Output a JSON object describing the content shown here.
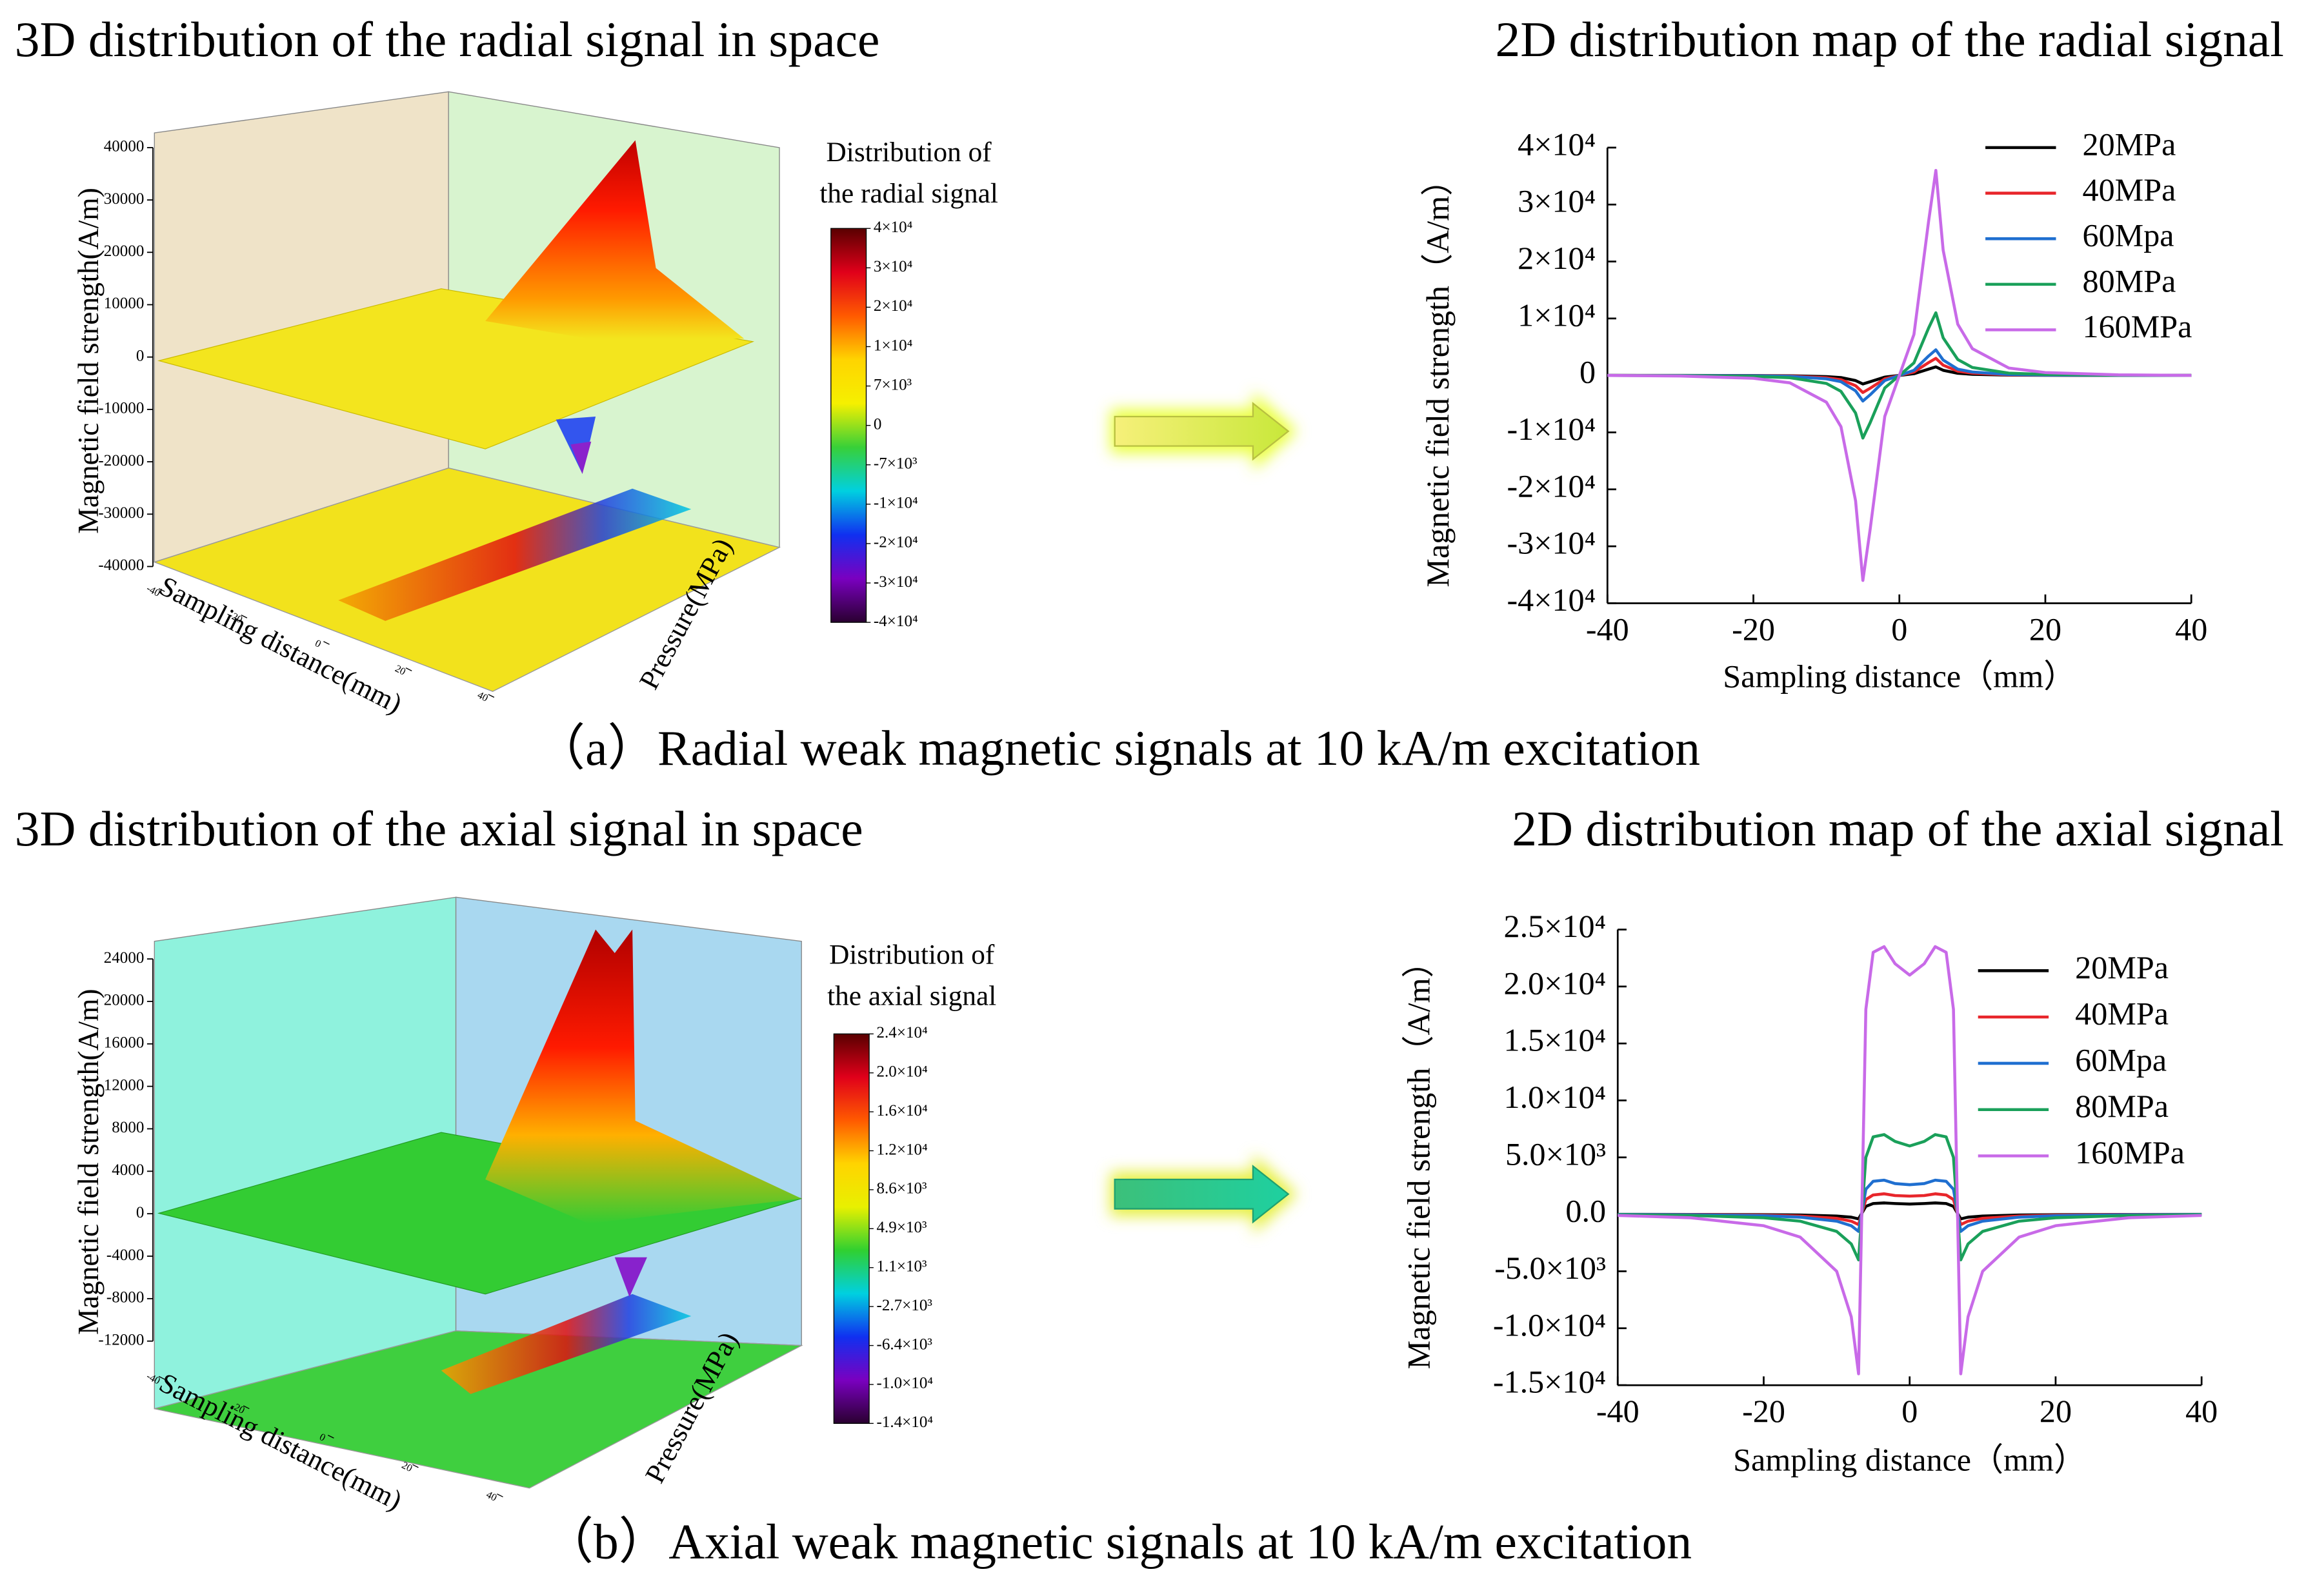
{
  "chart_data": [
    {
      "type": "surface3d",
      "title": "3D distribution of the radial signal in space",
      "zlabel": "Magnetic field strength(A/m)",
      "xlabel": "Sampling distance(mm)",
      "ylabel": "Pressure(MPa)",
      "zlim": [
        -40000,
        40000
      ],
      "zticks": [
        40000,
        30000,
        20000,
        10000,
        0,
        -10000,
        -20000,
        -30000,
        -40000
      ],
      "xlim": [
        -40,
        40
      ],
      "xticks": [
        -40,
        -20,
        0,
        20,
        40
      ],
      "colorbar": {
        "title": [
          "Distribution of",
          "the radial signal"
        ],
        "colors": [
          "#5a0000",
          "#e0001a",
          "#ff5a00",
          "#ffd400",
          "#f5f000",
          "#38d038",
          "#00d0e0",
          "#1030f0",
          "#7a00c0",
          "#2a0030"
        ],
        "ticks": [
          {
            "value": 40000,
            "label": "4×10⁴"
          },
          {
            "value": 30000,
            "label": "3×10⁴"
          },
          {
            "value": 20000,
            "label": "2×10⁴"
          },
          {
            "value": 10000,
            "label": "1×10⁴"
          },
          {
            "value": 7000,
            "label": "7×10³"
          },
          0,
          {
            "value": -7000,
            "label": "-7×10³"
          },
          {
            "value": -10000,
            "label": "-1×10⁴"
          },
          {
            "value": -20000,
            "label": "-2×10⁴"
          },
          {
            "value": -30000,
            "label": "-3×10⁴"
          },
          {
            "value": -40000,
            "label": "-4×10⁴"
          }
        ]
      }
    },
    {
      "type": "line",
      "title": "2D distribution map of the radial signal",
      "xlabel": "Sampling distance（mm）",
      "ylabel": "Magnetic field strength（A/m）",
      "xlim": [
        -40,
        40
      ],
      "xticks": [
        -40,
        -20,
        0,
        20,
        40
      ],
      "ylim": [
        -40000,
        40000
      ],
      "yticks": [
        {
          "value": 40000,
          "label": "4×10⁴"
        },
        {
          "value": 30000,
          "label": "3×10⁴"
        },
        {
          "value": 20000,
          "label": "2×10⁴"
        },
        {
          "value": 10000,
          "label": "1×10⁴"
        },
        0,
        {
          "value": -10000,
          "label": "-1×10⁴"
        },
        {
          "value": -20000,
          "label": "-2×10⁴"
        },
        {
          "value": -30000,
          "label": "-3×10⁴"
        },
        {
          "value": -40000,
          "label": "-4×10⁴"
        }
      ],
      "x": [
        -40,
        -30,
        -20,
        -15,
        -10,
        -8,
        -6,
        -5,
        -4,
        -2,
        0,
        2,
        4,
        5,
        6,
        8,
        10,
        15,
        20,
        30,
        40
      ],
      "series": [
        {
          "name": "20MPa",
          "color": "#000000",
          "values": [
            0,
            0,
            -20,
            -50,
            -200,
            -380,
            -900,
            -1500,
            -1100,
            -300,
            0,
            300,
            1100,
            1500,
            900,
            380,
            200,
            50,
            20,
            0,
            0
          ]
        },
        {
          "name": "40MPa",
          "color": "#e8262b",
          "values": [
            0,
            -10,
            -50,
            -100,
            -400,
            -750,
            -1800,
            -3000,
            -2250,
            -600,
            0,
            600,
            2250,
            3000,
            1800,
            750,
            400,
            100,
            50,
            10,
            0
          ]
        },
        {
          "name": "60Mpa",
          "color": "#1f6fd0",
          "values": [
            0,
            -10,
            -70,
            -160,
            -600,
            -1100,
            -2700,
            -4500,
            -3400,
            -900,
            0,
            900,
            3400,
            4500,
            2700,
            1100,
            600,
            160,
            70,
            10,
            0
          ]
        },
        {
          "name": "80MPa",
          "color": "#1aa05a",
          "values": [
            0,
            -30,
            -170,
            -400,
            -1400,
            -2800,
            -6600,
            -11000,
            -8300,
            -2200,
            0,
            2200,
            8300,
            11000,
            6600,
            2800,
            1400,
            400,
            170,
            30,
            0
          ]
        },
        {
          "name": "160MPa",
          "color": "#c86ae8",
          "values": [
            0,
            -100,
            -500,
            -1300,
            -4700,
            -9000,
            -22000,
            -36000,
            -27000,
            -7200,
            0,
            7200,
            27000,
            36000,
            22000,
            9000,
            4700,
            1300,
            500,
            100,
            0
          ]
        }
      ]
    },
    {
      "type": "surface3d",
      "title": "3D distribution of the axial signal in space",
      "zlabel": "Magnetic field strength(A/m)",
      "xlabel": "Sampling distance(mm)",
      "ylabel": "Pressure(MPa)",
      "zlim": [
        -12000,
        24000
      ],
      "zticks": [
        24000,
        20000,
        16000,
        12000,
        8000,
        4000,
        0,
        -4000,
        -8000,
        -12000
      ],
      "xlim": [
        -40,
        40
      ],
      "xticks": [
        -40,
        -20,
        0,
        20,
        40
      ],
      "colorbar": {
        "title": [
          "Distribution of",
          "the axial signal"
        ],
        "colors": [
          "#5a0000",
          "#e0001a",
          "#ff5a00",
          "#ffd400",
          "#e8f000",
          "#30d030",
          "#00d0e0",
          "#1030f0",
          "#7a00c0",
          "#2a0030"
        ],
        "ticks": [
          {
            "value": 24000,
            "label": "2.4×10⁴"
          },
          {
            "value": 20000,
            "label": "2.0×10⁴"
          },
          {
            "value": 16000,
            "label": "1.6×10⁴"
          },
          {
            "value": 12000,
            "label": "1.2×10⁴"
          },
          {
            "value": 8600,
            "label": "8.6×10³"
          },
          {
            "value": 4900,
            "label": "4.9×10³"
          },
          {
            "value": 1100,
            "label": "1.1×10³"
          },
          {
            "value": -2700,
            "label": "-2.7×10³"
          },
          {
            "value": -6400,
            "label": "-6.4×10³"
          },
          {
            "value": -10000,
            "label": "-1.0×10⁴"
          },
          {
            "value": -14000,
            "label": "-1.4×10⁴"
          }
        ]
      }
    },
    {
      "type": "line",
      "title": "2D distribution map of the axial signal",
      "xlabel": "Sampling distance（mm）",
      "ylabel": "Magnetic field strength（A/m）",
      "xlim": [
        -40,
        40
      ],
      "xticks": [
        -40,
        -20,
        0,
        20,
        40
      ],
      "ylim": [
        -15000,
        25000
      ],
      "yticks": [
        {
          "value": 25000,
          "label": "2.5×10⁴"
        },
        {
          "value": 20000,
          "label": "2.0×10⁴"
        },
        {
          "value": 15000,
          "label": "1.5×10⁴"
        },
        {
          "value": 10000,
          "label": "1.0×10⁴"
        },
        {
          "value": 5000,
          "label": "5.0×10³"
        },
        {
          "value": 0,
          "label": "0.0"
        },
        {
          "value": -5000,
          "label": "-5.0×10³"
        },
        {
          "value": -10000,
          "label": "-1.0×10⁴"
        },
        {
          "value": -15000,
          "label": "-1.5×10⁴"
        }
      ],
      "x": [
        -40,
        -30,
        -20,
        -15,
        -10,
        -8,
        -7,
        -6,
        -5,
        -3.5,
        -2,
        0,
        2,
        3.5,
        5,
        6,
        7,
        8,
        10,
        15,
        20,
        30,
        40
      ],
      "series": [
        {
          "name": "20MPa",
          "color": "#000000",
          "values": [
            0,
            -10,
            -30,
            -60,
            -150,
            -250,
            -400,
            700,
            950,
            1000,
            950,
            900,
            950,
            1000,
            950,
            700,
            -400,
            -250,
            -150,
            -60,
            -30,
            -10,
            0
          ]
        },
        {
          "name": "40MPa",
          "color": "#e8262b",
          "values": [
            -10,
            -20,
            -70,
            -150,
            -350,
            -600,
            -900,
            1300,
            1700,
            1800,
            1650,
            1600,
            1650,
            1800,
            1700,
            1300,
            -900,
            -600,
            -350,
            -150,
            -70,
            -20,
            -10
          ]
        },
        {
          "name": "60Mpa",
          "color": "#1f6fd0",
          "values": [
            -10,
            -40,
            -120,
            -250,
            -600,
            -1000,
            -1500,
            2200,
            2900,
            3000,
            2700,
            2600,
            2700,
            3000,
            2900,
            2200,
            -1500,
            -1000,
            -600,
            -250,
            -120,
            -40,
            -10
          ]
        },
        {
          "name": "80MPa",
          "color": "#1aa05a",
          "values": [
            -30,
            -100,
            -300,
            -600,
            -1500,
            -2600,
            -4000,
            5000,
            6800,
            7000,
            6400,
            6000,
            6400,
            7000,
            6800,
            5000,
            -4000,
            -2600,
            -1500,
            -600,
            -300,
            -100,
            -30
          ]
        },
        {
          "name": "160MPa",
          "color": "#c86ae8",
          "values": [
            -100,
            -300,
            -1000,
            -2000,
            -5000,
            -9000,
            -14000,
            18000,
            23000,
            23500,
            22000,
            21000,
            22000,
            23500,
            23000,
            18000,
            -14000,
            -9000,
            -5000,
            -2000,
            -1000,
            -300,
            -100
          ]
        }
      ]
    }
  ],
  "captions": [
    "（a）Radial weak magnetic signals at 10 kA/m excitation",
    "（b）Axial weak magnetic signals at 10 kA/m excitation"
  ]
}
